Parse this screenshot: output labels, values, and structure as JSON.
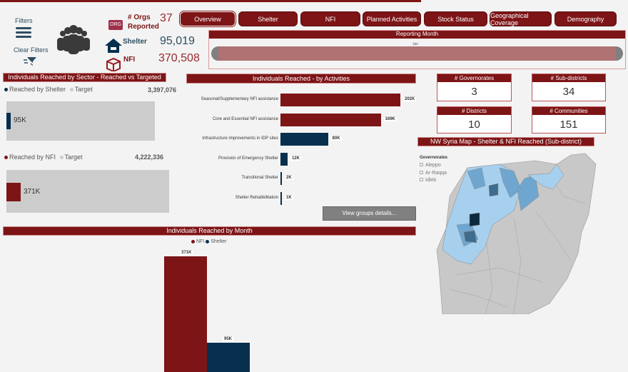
{
  "colors": {
    "brand": "#7d1416",
    "shelter": "#06304d",
    "target": "#cccccc"
  },
  "left": {
    "filters_label": "Filters",
    "clear_filters_label": "Clear Filters"
  },
  "kpis": {
    "orgs_label": "# Orgs Reported",
    "orgs_value": "37",
    "shelter_label": "Shelter",
    "shelter_value": "95,019",
    "nfi_label": "NFI",
    "nfi_value": "370,508",
    "org_icon_text": "ORG"
  },
  "nav": [
    {
      "label": "Overview"
    },
    {
      "label": "Shelter"
    },
    {
      "label": "NFI"
    },
    {
      "label": "Planned Activities"
    },
    {
      "label": "Stock Status"
    },
    {
      "label": "Geographical Coverage"
    },
    {
      "label": "Demography"
    }
  ],
  "slicer": {
    "title": "Reporting Month",
    "value": "Jan"
  },
  "sector": {
    "title": "Individuals Reached by Sector - Reached vs Targeted",
    "shelter": {
      "legend_reached": "Reached by Shelter",
      "legend_target": "Target",
      "target": "3,397,076",
      "reached_label": "95K",
      "fraction": 0.028
    },
    "nfi": {
      "legend_reached": "Reached by NFI",
      "legend_target": "Target",
      "target": "4,222,336",
      "reached_label": "371K",
      "fraction": 0.088
    }
  },
  "activities": {
    "title": "Individuals Reached - by Activities",
    "button": "View groups details...",
    "items": [
      {
        "label": "Seasonal/Supplementary NFI assistance",
        "value": 202,
        "display": "202K",
        "sector": "nfi"
      },
      {
        "label": "Core and Essential NFI assistance",
        "value": 169,
        "display": "169K",
        "sector": "nfi"
      },
      {
        "label": "Infrastructure improvements in IDP sites",
        "value": 80,
        "display": "80K",
        "sector": "shelter"
      },
      {
        "label": "Provision of Emergency Shelter",
        "value": 12,
        "display": "12K",
        "sector": "shelter"
      },
      {
        "label": "Transitional Shelter",
        "value": 2,
        "display": "2K",
        "sector": "shelter"
      },
      {
        "label": "Shelter Rehabbilitation",
        "value": 1,
        "display": "1K",
        "sector": "shelter"
      }
    ]
  },
  "cards": [
    {
      "title": "# Governorates",
      "value": "3"
    },
    {
      "title": "# Sub-districts",
      "value": "34"
    },
    {
      "title": "# Districts",
      "value": "10"
    },
    {
      "title": "# Communities",
      "value": "151"
    }
  ],
  "map": {
    "title": "NW Syria Map - Shelter & NFI Reached (Sub-district)",
    "legend_title": "Governorates",
    "legend_items": [
      "Aleppo",
      "Ar-Raqqa",
      "Idleb"
    ]
  },
  "month": {
    "title": "Individuals Reached by Month",
    "legend": [
      "NFI",
      "Shelter"
    ],
    "series": [
      {
        "name": "NFI",
        "value": 371,
        "display": "371K"
      },
      {
        "name": "Shelter",
        "value": 95,
        "display": "95K"
      }
    ]
  }
}
